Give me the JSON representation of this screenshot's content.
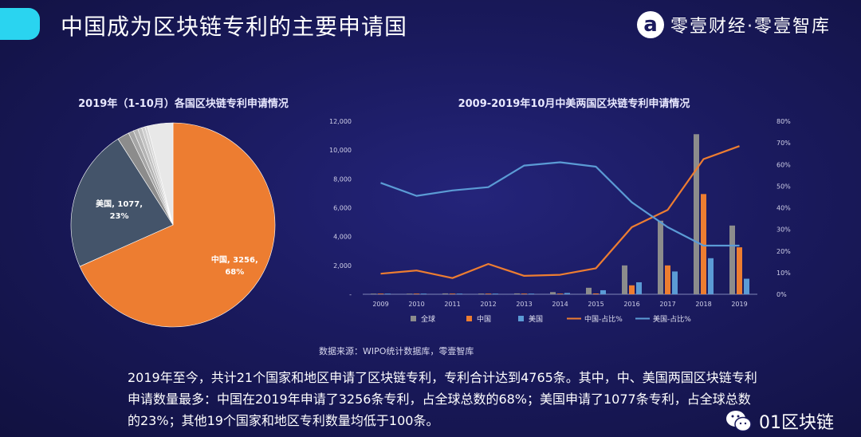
{
  "header": {
    "title": "中国成为区块链专利的主要申请国",
    "brand": "零壹财经·零壹智库",
    "brand_logo_letter": "a"
  },
  "chart_data": [
    {
      "type": "pie",
      "title": "2019年（1-10月）各国区块链专利申请情况",
      "slices": [
        {
          "name": "中国",
          "value": 3256,
          "percent": "68%",
          "label_line1": "中国, 3256,",
          "label_line2": "68%",
          "color": "#ed7d31"
        },
        {
          "name": "美国",
          "value": 1077,
          "percent": "23%",
          "label_line1": "美国, 1077,",
          "label_line2": "23%",
          "color": "#44546a"
        },
        {
          "name": "",
          "value": 90,
          "color": "#8c8c8c"
        },
        {
          "name": "",
          "value": 40,
          "color": "#a6a6a6"
        },
        {
          "name": "",
          "value": 35,
          "color": "#b4b4b4"
        },
        {
          "name": "",
          "value": 30,
          "color": "#c2c2c2"
        },
        {
          "name": "",
          "value": 25,
          "color": "#cfcfcf"
        },
        {
          "name": "",
          "value": 20,
          "color": "#d9d9d9"
        },
        {
          "name": "",
          "value": 192,
          "color": "#e8e8e8"
        }
      ]
    },
    {
      "type": "bar",
      "title": "2009-2019年10月中美两国区块链专利申请情况",
      "categories": [
        "2009",
        "2010",
        "2011",
        "2012",
        "2013",
        "2014",
        "2015",
        "2016",
        "2017",
        "2018",
        "2019"
      ],
      "ylim": [
        0,
        12000
      ],
      "y_ticks": [
        "-",
        "2,000",
        "4,000",
        "6,000",
        "8,000",
        "10,000",
        "12,000"
      ],
      "y2lim": [
        0,
        0.8
      ],
      "y2_ticks": [
        "0%",
        "10%",
        "20%",
        "30%",
        "40%",
        "50%",
        "60%",
        "70%",
        "80%"
      ],
      "series": [
        {
          "name": "全球",
          "type": "bar",
          "color": "#8c8c8c",
          "values": [
            10,
            20,
            60,
            50,
            60,
            150,
            450,
            2000,
            5100,
            11100,
            4765
          ]
        },
        {
          "name": "中国",
          "type": "bar",
          "color": "#ed7d31",
          "values": [
            1,
            2,
            5,
            7,
            5,
            15,
            55,
            620,
            2000,
            6950,
            3256
          ]
        },
        {
          "name": "美国",
          "type": "bar",
          "color": "#5b9bd5",
          "values": [
            6,
            12,
            30,
            25,
            35,
            90,
            280,
            830,
            1580,
            2500,
            1077
          ]
        },
        {
          "name": "中国-占比%",
          "type": "line",
          "axis": "right",
          "color": "#ed7d31",
          "values": [
            0.095,
            0.11,
            0.075,
            0.14,
            0.085,
            0.09,
            0.12,
            0.31,
            0.39,
            0.625,
            0.685
          ]
        },
        {
          "name": "美国-占比%",
          "type": "line",
          "axis": "right",
          "color": "#5b9bd5",
          "values": [
            0.515,
            0.455,
            0.48,
            0.495,
            0.595,
            0.61,
            0.59,
            0.425,
            0.31,
            0.225,
            0.225
          ]
        }
      ],
      "legend_position": "bottom"
    }
  ],
  "source_text": "数据来源：WIPO统计数据库，零壹智库",
  "paragraph": "2019年至今，共计21个国家和地区申请了区块链专利，专利合计达到4765条。其中，中、美国两国区块链专利申请数量最多：中国在2019年申请了3256条专利，占全球总数的68%；美国申请了1077条专利，占全球总数的23%；其他19个国家和地区专利数量均低于100条。",
  "footer": {
    "account_name": "01区块链",
    "icon": "wechat-icon"
  }
}
